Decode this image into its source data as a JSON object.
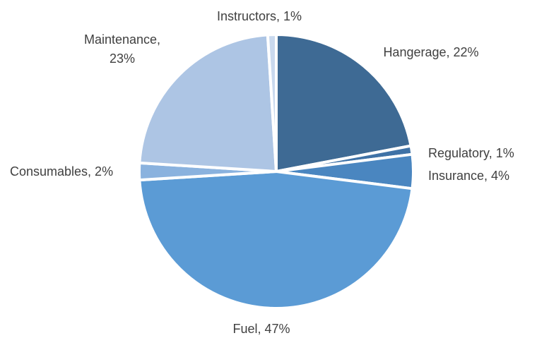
{
  "chart_data": {
    "type": "pie",
    "title": "",
    "start": "12 o'clock",
    "direction": "clockwise",
    "slices": [
      {
        "label": "Hangerage",
        "value": 22,
        "color": "#3E6A94"
      },
      {
        "label": "Regulatory",
        "value": 1,
        "color": "#3F72A6"
      },
      {
        "label": "Insurance",
        "value": 4,
        "color": "#4A86C0"
      },
      {
        "label": "Fuel",
        "value": 47,
        "color": "#5B9BD5"
      },
      {
        "label": "Consumables",
        "value": 2,
        "color": "#8AB2DE"
      },
      {
        "label": "Maintenance",
        "value": 23,
        "color": "#ADC5E4"
      },
      {
        "label": "Instructors",
        "value": 1,
        "color": "#C9D9EE"
      }
    ],
    "data_labels": "category, percent",
    "legend": "none"
  }
}
